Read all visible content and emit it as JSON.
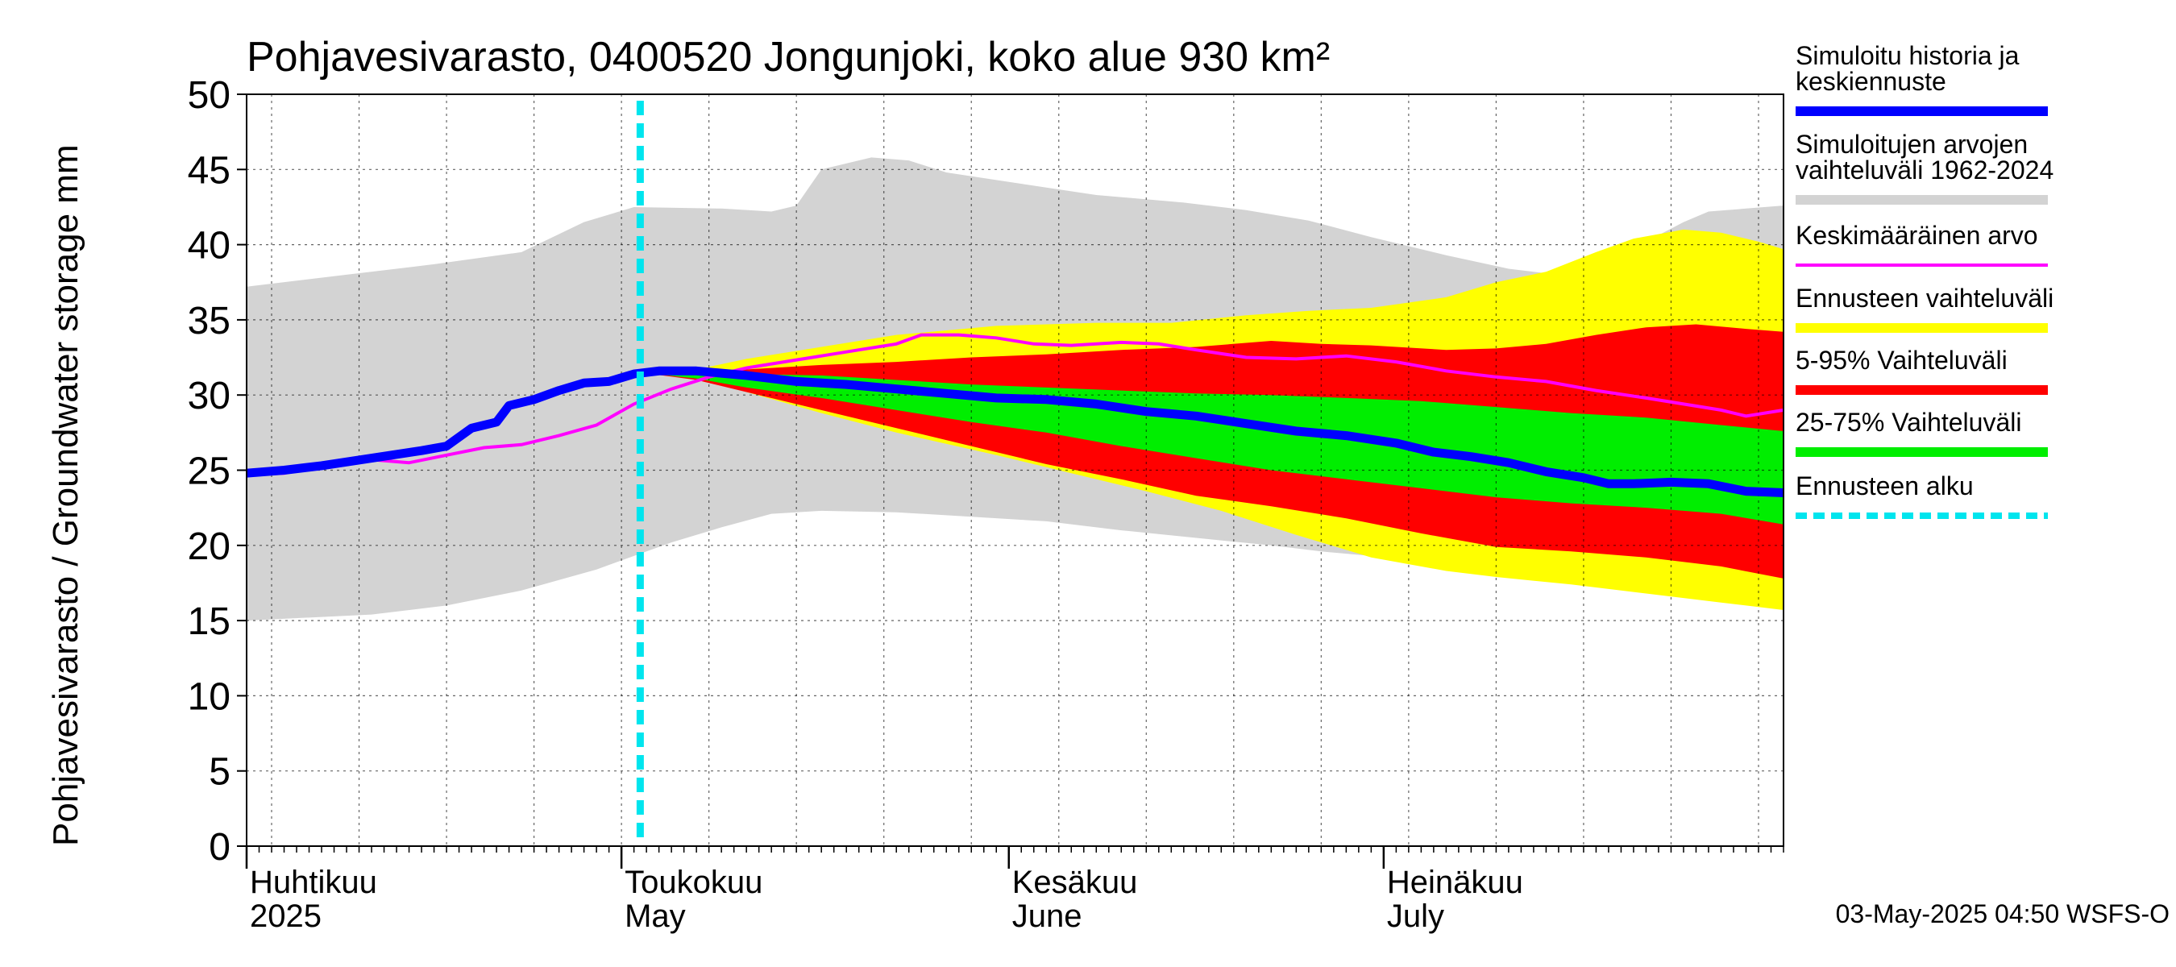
{
  "chart_data": {
    "type": "area",
    "title": "Pohjavesivarasto, 0400520 Jongunjoki, koko alue 930 km²",
    "ylabel": "Pohjavesivarasto / Groundwater storage   mm",
    "ylim": [
      0,
      50
    ],
    "yticks": [
      0,
      5,
      10,
      15,
      20,
      25,
      30,
      35,
      40,
      45,
      50
    ],
    "x_range_day": [
      0,
      123
    ],
    "forecast_start_day": 31.5,
    "month_labels": [
      {
        "day": 0,
        "fi": "Huhtikuu",
        "en": "2025"
      },
      {
        "day": 30,
        "fi": "Toukokuu",
        "en": "May"
      },
      {
        "day": 61,
        "fi": "Kesäkuu",
        "en": "June"
      },
      {
        "day": 91,
        "fi": "Heinäkuu",
        "en": "July"
      }
    ],
    "footer": "03-May-2025 04:50 WSFS-O",
    "legend": [
      {
        "label": "Simuloitu historia ja keskiennuste",
        "color": "#0000ff"
      },
      {
        "label": "Simuloitujen arvojen vaihteluväli 1962-2024",
        "color": "#d3d3d3"
      },
      {
        "label": "Keskimääräinen arvo",
        "color": "#ff00ff"
      },
      {
        "label": "Ennusteen vaihteluväli",
        "color": "#ffff00"
      },
      {
        "label": "5-95% Vaihteluväli",
        "color": "#ff0000"
      },
      {
        "label": "25-75% Vaihteluväli",
        "color": "#00ee00"
      },
      {
        "label": "Ennusteen alku",
        "color": "#00e5ee"
      }
    ],
    "series": [
      {
        "name": "hist_range_upper",
        "points": [
          [
            0,
            37.2
          ],
          [
            8,
            38
          ],
          [
            15,
            38.7
          ],
          [
            22,
            39.5
          ],
          [
            27,
            41.5
          ],
          [
            31,
            42.5
          ],
          [
            38,
            42.4
          ],
          [
            42,
            42.2
          ],
          [
            44,
            42.6
          ],
          [
            46,
            45
          ],
          [
            50,
            45.8
          ],
          [
            53,
            45.6
          ],
          [
            56,
            44.8
          ],
          [
            60,
            44.3
          ],
          [
            64,
            43.8
          ],
          [
            68,
            43.3
          ],
          [
            75,
            42.8
          ],
          [
            80,
            42.3
          ],
          [
            85,
            41.6
          ],
          [
            90,
            40.5
          ],
          [
            96,
            39.3
          ],
          [
            101,
            38.4
          ],
          [
            105,
            38
          ],
          [
            109,
            38.6
          ],
          [
            112,
            40.2
          ],
          [
            115,
            41.5
          ],
          [
            117,
            42.2
          ],
          [
            120,
            42.4
          ],
          [
            123,
            42.6
          ]
        ]
      },
      {
        "name": "hist_range_lower",
        "points": [
          [
            0,
            15.0
          ],
          [
            10,
            15.4
          ],
          [
            16,
            16
          ],
          [
            22,
            17
          ],
          [
            28,
            18.4
          ],
          [
            34,
            20.2
          ],
          [
            38,
            21.2
          ],
          [
            42,
            22.1
          ],
          [
            46,
            22.3
          ],
          [
            52,
            22.2
          ],
          [
            58,
            21.9
          ],
          [
            64,
            21.6
          ],
          [
            70,
            21
          ],
          [
            76,
            20.5
          ],
          [
            82,
            20
          ],
          [
            86,
            19.6
          ],
          [
            90,
            19.3
          ],
          [
            95,
            19.1
          ],
          [
            98,
            18.8
          ],
          [
            102,
            18.4
          ],
          [
            108,
            17.8
          ],
          [
            114,
            17.3
          ],
          [
            118,
            16.9
          ],
          [
            121,
            16.8
          ],
          [
            123,
            17.0
          ]
        ]
      },
      {
        "name": "forecast_range_upper",
        "points": [
          [
            31.5,
            31.5
          ],
          [
            36,
            31.7
          ],
          [
            40,
            32.4
          ],
          [
            46,
            33.2
          ],
          [
            52,
            34
          ],
          [
            60,
            34.6
          ],
          [
            68,
            34.8
          ],
          [
            74,
            34.8
          ],
          [
            80,
            35.3
          ],
          [
            85,
            35.6
          ],
          [
            90,
            35.8
          ],
          [
            96,
            36.5
          ],
          [
            100,
            37.5
          ],
          [
            104,
            38.2
          ],
          [
            108,
            39.5
          ],
          [
            111,
            40.4
          ],
          [
            115,
            41
          ],
          [
            118,
            40.8
          ],
          [
            121,
            40.2
          ],
          [
            123,
            39.7
          ]
        ]
      },
      {
        "name": "forecast_range_lower",
        "points": [
          [
            31.5,
            31.5
          ],
          [
            36,
            31.2
          ],
          [
            40,
            30.2
          ],
          [
            46,
            28.8
          ],
          [
            52,
            27.5
          ],
          [
            60,
            26
          ],
          [
            66,
            24.8
          ],
          [
            72,
            23.6
          ],
          [
            78,
            22.3
          ],
          [
            84,
            20.7
          ],
          [
            90,
            19.2
          ],
          [
            96,
            18.3
          ],
          [
            100,
            17.9
          ],
          [
            106,
            17.4
          ],
          [
            110,
            17
          ],
          [
            114,
            16.6
          ],
          [
            118,
            16.2
          ],
          [
            121,
            15.9
          ],
          [
            123,
            15.7
          ]
        ]
      },
      {
        "name": "p95_upper",
        "points": [
          [
            31.5,
            31.5
          ],
          [
            36,
            31.6
          ],
          [
            40,
            31.7
          ],
          [
            46,
            32
          ],
          [
            52,
            32.2
          ],
          [
            58,
            32.5
          ],
          [
            64,
            32.7
          ],
          [
            70,
            33
          ],
          [
            76,
            33.2
          ],
          [
            82,
            33.6
          ],
          [
            86,
            33.4
          ],
          [
            90,
            33.3
          ],
          [
            96,
            33
          ],
          [
            100,
            33.1
          ],
          [
            104,
            33.4
          ],
          [
            108,
            34
          ],
          [
            112,
            34.5
          ],
          [
            116,
            34.7
          ],
          [
            120,
            34.4
          ],
          [
            123,
            34.2
          ]
        ]
      },
      {
        "name": "p95_lower",
        "points": [
          [
            31.5,
            31.5
          ],
          [
            36,
            31
          ],
          [
            40,
            30.2
          ],
          [
            46,
            29
          ],
          [
            52,
            27.8
          ],
          [
            58,
            26.6
          ],
          [
            64,
            25.4
          ],
          [
            70,
            24.4
          ],
          [
            76,
            23.3
          ],
          [
            82,
            22.6
          ],
          [
            88,
            21.8
          ],
          [
            94,
            20.8
          ],
          [
            100,
            19.9
          ],
          [
            106,
            19.6
          ],
          [
            112,
            19.2
          ],
          [
            118,
            18.6
          ],
          [
            123,
            17.8
          ]
        ]
      },
      {
        "name": "p75_upper",
        "points": [
          [
            31.5,
            31.5
          ],
          [
            36,
            31.6
          ],
          [
            40,
            31.4
          ],
          [
            46,
            31.3
          ],
          [
            52,
            31
          ],
          [
            58,
            30.7
          ],
          [
            64,
            30.5
          ],
          [
            70,
            30.3
          ],
          [
            76,
            30.1
          ],
          [
            82,
            30
          ],
          [
            88,
            29.8
          ],
          [
            94,
            29.6
          ],
          [
            100,
            29.2
          ],
          [
            106,
            28.8
          ],
          [
            112,
            28.5
          ],
          [
            118,
            28
          ],
          [
            123,
            27.6
          ]
        ]
      },
      {
        "name": "p75_lower",
        "points": [
          [
            31.5,
            31.5
          ],
          [
            36,
            31.1
          ],
          [
            40,
            30.5
          ],
          [
            46,
            29.8
          ],
          [
            52,
            29
          ],
          [
            58,
            28.2
          ],
          [
            64,
            27.5
          ],
          [
            70,
            26.6
          ],
          [
            76,
            25.8
          ],
          [
            82,
            25
          ],
          [
            88,
            24.4
          ],
          [
            94,
            23.8
          ],
          [
            100,
            23.2
          ],
          [
            106,
            22.8
          ],
          [
            112,
            22.5
          ],
          [
            118,
            22.1
          ],
          [
            123,
            21.4
          ]
        ]
      },
      {
        "name": "mean",
        "points": [
          [
            0,
            24.7
          ],
          [
            3,
            24.8
          ],
          [
            6,
            25.3
          ],
          [
            10,
            25.7
          ],
          [
            13,
            25.5
          ],
          [
            16,
            26
          ],
          [
            19,
            26.5
          ],
          [
            22,
            26.7
          ],
          [
            25,
            27.3
          ],
          [
            28,
            28
          ],
          [
            31,
            29.4
          ],
          [
            34,
            30.4
          ],
          [
            37,
            31.2
          ],
          [
            40,
            31.8
          ],
          [
            43,
            32.2
          ],
          [
            46,
            32.6
          ],
          [
            49,
            33
          ],
          [
            52,
            33.4
          ],
          [
            54,
            34
          ],
          [
            57,
            34
          ],
          [
            60,
            33.8
          ],
          [
            63,
            33.4
          ],
          [
            66,
            33.3
          ],
          [
            70,
            33.5
          ],
          [
            73,
            33.4
          ],
          [
            76,
            33
          ],
          [
            80,
            32.5
          ],
          [
            84,
            32.4
          ],
          [
            88,
            32.6
          ],
          [
            92,
            32.2
          ],
          [
            96,
            31.6
          ],
          [
            100,
            31.2
          ],
          [
            104,
            30.9
          ],
          [
            108,
            30.3
          ],
          [
            112,
            29.8
          ],
          [
            115,
            29.4
          ],
          [
            118,
            29
          ],
          [
            120,
            28.6
          ],
          [
            123,
            29
          ]
        ]
      },
      {
        "name": "simulated",
        "points": [
          [
            0,
            24.8
          ],
          [
            3,
            25
          ],
          [
            6,
            25.3
          ],
          [
            10,
            25.8
          ],
          [
            14,
            26.3
          ],
          [
            16,
            26.6
          ],
          [
            17,
            27.2
          ],
          [
            18,
            27.8
          ],
          [
            20,
            28.2
          ],
          [
            21,
            29.3
          ],
          [
            23,
            29.7
          ],
          [
            25,
            30.3
          ],
          [
            27,
            30.8
          ],
          [
            29,
            30.9
          ],
          [
            31,
            31.4
          ],
          [
            33,
            31.6
          ],
          [
            36,
            31.6
          ],
          [
            40,
            31.3
          ],
          [
            44,
            30.9
          ],
          [
            48,
            30.7
          ],
          [
            52,
            30.4
          ],
          [
            56,
            30.1
          ],
          [
            60,
            29.8
          ],
          [
            64,
            29.7
          ],
          [
            68,
            29.4
          ],
          [
            72,
            28.9
          ],
          [
            76,
            28.6
          ],
          [
            80,
            28.1
          ],
          [
            84,
            27.6
          ],
          [
            88,
            27.3
          ],
          [
            92,
            26.8
          ],
          [
            95,
            26.2
          ],
          [
            98,
            25.9
          ],
          [
            101,
            25.5
          ],
          [
            104,
            24.9
          ],
          [
            107,
            24.5
          ],
          [
            109,
            24.1
          ],
          [
            111,
            24.1
          ],
          [
            114,
            24.2
          ],
          [
            117,
            24.1
          ],
          [
            120,
            23.6
          ],
          [
            123,
            23.5
          ]
        ]
      }
    ]
  }
}
